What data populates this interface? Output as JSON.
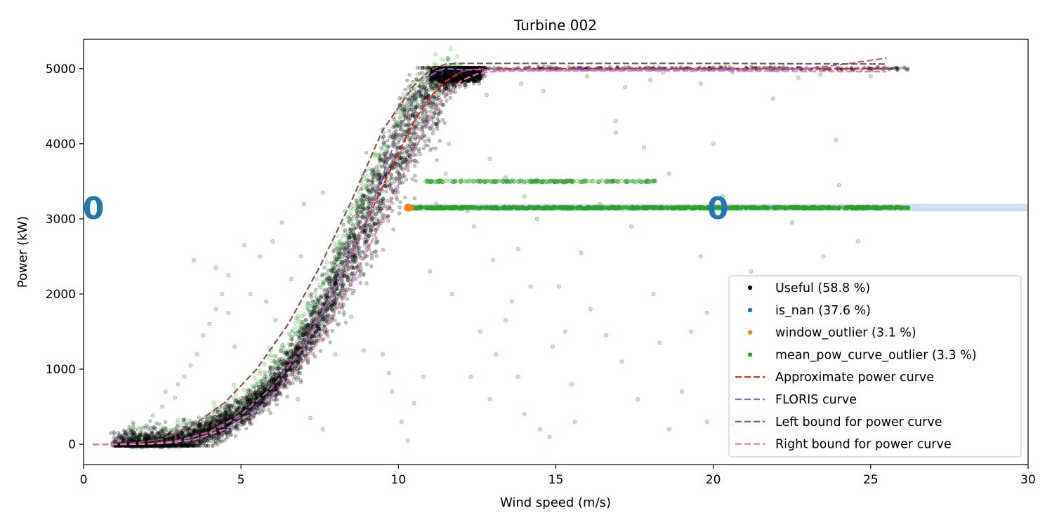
{
  "chart_data": {
    "type": "scatter",
    "title": "Turbine 002",
    "xlabel": "Wind speed (m/s)",
    "ylabel": "Power (kW)",
    "xlim": [
      0,
      30
    ],
    "ylim": [
      -270,
      5390
    ],
    "x_ticks": [
      0,
      5,
      10,
      15,
      20,
      25,
      30
    ],
    "y_ticks": [
      0,
      1000,
      2000,
      3000,
      4000,
      5000
    ],
    "grid": false,
    "legend_position": "lower-right",
    "colors": {
      "useful": "#000000",
      "is_nan": "#1f77b4",
      "window_outlier": "#ff7f0e",
      "mean_pow_curve_outlier": "#2ca02c",
      "approx_curve": "#d62728",
      "floris_curve": "#9467bd",
      "left_bound": "#8c564b",
      "right_bound": "#e377c2"
    },
    "legend": [
      {
        "label": "Useful (58.8 %)",
        "kind": "marker",
        "color": "#000000"
      },
      {
        "label": "is_nan (37.6 %)",
        "kind": "marker",
        "color": "#1f77b4"
      },
      {
        "label": "window_outlier (3.1 %)",
        "kind": "marker",
        "color": "#ff7f0e"
      },
      {
        "label": "mean_pow_curve_outlier (3.3 %)",
        "kind": "marker",
        "color": "#2ca02c"
      },
      {
        "label": "Approximate power curve",
        "kind": "dash",
        "color": "#d62728"
      },
      {
        "label": "FLORIS curve",
        "kind": "dash",
        "color": "#9467bd"
      },
      {
        "label": "Left bound for power curve",
        "kind": "dash",
        "color": "#8c564b"
      },
      {
        "label": "Right bound for power curve",
        "kind": "dash",
        "color": "#e377c2"
      }
    ],
    "annotations": [
      {
        "text": "0",
        "x": 0,
        "y": 3150,
        "color": "#1f77b4"
      },
      {
        "text": "0",
        "x": 20.1,
        "y": 3150,
        "color": "#1f77b4"
      }
    ],
    "band": {
      "y_range": [
        3100,
        3200
      ],
      "x_range": [
        10.4,
        30
      ],
      "color": "#1f77b4"
    },
    "series": [
      {
        "name": "Approximate power curve",
        "style": "dashed",
        "color": "#d62728",
        "x": [
          0.3,
          1,
          2,
          3,
          4,
          5,
          6,
          7,
          8,
          9,
          10,
          10.5,
          11,
          11.5,
          12,
          12.5,
          13,
          15,
          20,
          25.5
        ],
        "y": [
          0,
          0,
          5,
          50,
          170,
          400,
          760,
          1320,
          2080,
          2980,
          3880,
          4300,
          4620,
          4830,
          4960,
          5000,
          5000,
          5000,
          5000,
          5000
        ]
      },
      {
        "name": "FLORIS curve",
        "style": "dashed",
        "color": "#9467bd",
        "x": [
          0.3,
          1,
          2,
          3,
          4,
          5,
          6,
          7,
          8,
          9,
          10,
          10.5,
          11,
          11.3,
          11.5,
          12,
          15,
          20,
          23,
          24,
          25.5
        ],
        "y": [
          0,
          0,
          5,
          45,
          160,
          390,
          760,
          1300,
          2080,
          3000,
          4150,
          4600,
          4900,
          4980,
          5000,
          4985,
          4985,
          4990,
          5000,
          5050,
          5140
        ]
      },
      {
        "name": "Left bound for power curve",
        "style": "dashed",
        "color": "#8c564b",
        "x": [
          0.3,
          1,
          1.5,
          2.5,
          3.5,
          4.5,
          5.5,
          6.5,
          7.5,
          8.5,
          9.5,
          10,
          10.5,
          11,
          11.5,
          12,
          15,
          20,
          25.5
        ],
        "y": [
          0,
          0,
          10,
          70,
          260,
          560,
          1000,
          1600,
          2360,
          3230,
          4180,
          4480,
          4780,
          4980,
          5060,
          5070,
          5070,
          5070,
          5060
        ]
      },
      {
        "name": "Right bound for power curve",
        "style": "dashed",
        "color": "#e377c2",
        "x": [
          0.3,
          1.5,
          2.5,
          3.5,
          4.5,
          5.5,
          6.5,
          7.5,
          8.5,
          9.5,
          10.5,
          11,
          11.5,
          12,
          12.5,
          13,
          13.5,
          15,
          20,
          25.5
        ],
        "y": [
          0,
          0,
          10,
          60,
          200,
          450,
          850,
          1400,
          2140,
          3000,
          3900,
          4330,
          4650,
          4840,
          4930,
          4960,
          4970,
          4970,
          4970,
          4960
        ]
      }
    ],
    "scatter": {
      "useful_band": {
        "name": "Useful (58.8 %)",
        "color": "#000000",
        "x": [
          1,
          2,
          3,
          4,
          5,
          6,
          7,
          8,
          9,
          10,
          10.5,
          11,
          11.5,
          12,
          12.5,
          13,
          15,
          20,
          25,
          26.2
        ],
        "y_center": [
          0,
          5,
          50,
          170,
          400,
          760,
          1320,
          2080,
          2980,
          3880,
          4300,
          4620,
          4830,
          4960,
          5000,
          5000,
          5000,
          5000,
          5000,
          5000
        ],
        "x_spread": 0.45
      },
      "outlier_lines": [
        {
          "name": "mean_pow_curve_outlier (3.3 %)",
          "x_range": [
            10.3,
            26.2
          ],
          "y": 3150,
          "color": "#2ca02c"
        },
        {
          "name": "mean_pow_curve_outlier (3.3 %)",
          "x_range": [
            10.8,
            18.2
          ],
          "y": 3500,
          "color": "#2ca02c"
        }
      ],
      "window_outlier_point": {
        "name": "window_outlier (3.1 %)",
        "x": 10.3,
        "y": 3150,
        "color": "#ff7f0e"
      },
      "scattered_outliers": {
        "name": "mean_pow_curve_outlier (3.3 %)",
        "color": "#2ca02c",
        "points": [
          [
            1.8,
            120
          ],
          [
            2.0,
            250
          ],
          [
            2.2,
            380
          ],
          [
            2.5,
            500
          ],
          [
            2.6,
            700
          ],
          [
            2.9,
            620
          ],
          [
            3.0,
            800
          ],
          [
            3.2,
            900
          ],
          [
            3.4,
            1050
          ],
          [
            3.6,
            1200
          ],
          [
            3.8,
            1450
          ],
          [
            4.0,
            1600
          ],
          [
            4.2,
            1800
          ],
          [
            4.4,
            2000
          ],
          [
            4.6,
            1750
          ],
          [
            4.8,
            1300
          ],
          [
            3.5,
            2450
          ],
          [
            4.2,
            2350
          ],
          [
            4.6,
            2250
          ],
          [
            5.1,
            2650
          ],
          [
            5.6,
            2500
          ],
          [
            6.0,
            2700
          ],
          [
            6.3,
            2950
          ],
          [
            7.0,
            3200
          ],
          [
            7.6,
            3350
          ],
          [
            8.3,
            3100
          ],
          [
            8.8,
            3500
          ],
          [
            5.3,
            2000
          ],
          [
            5.8,
            1900
          ],
          [
            6.1,
            1650
          ],
          [
            6.6,
            2200
          ],
          [
            6.9,
            2500
          ],
          [
            7.3,
            1900
          ],
          [
            7.9,
            2300
          ],
          [
            8.1,
            1600
          ],
          [
            6.2,
            950
          ],
          [
            6.8,
            600
          ],
          [
            7.2,
            350
          ],
          [
            7.6,
            200
          ],
          [
            8.0,
            1200
          ],
          [
            8.5,
            1700
          ],
          [
            8.9,
            1250
          ],
          [
            9.3,
            2700
          ],
          [
            9.5,
            1200
          ],
          [
            9.7,
            950
          ],
          [
            9.8,
            700
          ],
          [
            10.1,
            300
          ],
          [
            10.3,
            50
          ],
          [
            10.5,
            550
          ],
          [
            10.8,
            900
          ],
          [
            11.0,
            2300
          ],
          [
            11.2,
            3200
          ],
          [
            11.5,
            3600
          ],
          [
            11.6,
            4000
          ],
          [
            12.2,
            3100
          ],
          [
            12.4,
            2900
          ],
          [
            12.9,
            3800
          ],
          [
            13.0,
            2450
          ],
          [
            13.4,
            3550
          ],
          [
            13.6,
            1900
          ],
          [
            13.8,
            2600
          ],
          [
            14.0,
            3300
          ],
          [
            14.2,
            2100
          ],
          [
            14.4,
            3000
          ],
          [
            12.6,
            1500
          ],
          [
            12.9,
            600
          ],
          [
            13.1,
            1200
          ],
          [
            13.4,
            1650
          ],
          [
            13.8,
            900
          ],
          [
            14.0,
            400
          ],
          [
            14.5,
            200
          ],
          [
            14.9,
            1300
          ],
          [
            15.1,
            2100
          ],
          [
            15.3,
            1500
          ],
          [
            15.5,
            800
          ],
          [
            15.8,
            2550
          ],
          [
            16.1,
            1800
          ],
          [
            16.4,
            3200
          ],
          [
            16.6,
            1450
          ],
          [
            16.9,
            4150
          ],
          [
            17.1,
            1100
          ],
          [
            17.4,
            2900
          ],
          [
            17.6,
            600
          ],
          [
            17.8,
            3950
          ],
          [
            18.1,
            2000
          ],
          [
            18.3,
            1350
          ],
          [
            18.6,
            3600
          ],
          [
            19.0,
            700
          ],
          [
            19.3,
            1500
          ],
          [
            19.6,
            2500
          ],
          [
            20.0,
            4000
          ],
          [
            20.3,
            3300
          ],
          [
            20.6,
            250
          ],
          [
            20.9,
            1500
          ],
          [
            21.2,
            2300
          ],
          [
            21.6,
            600
          ],
          [
            22.0,
            900
          ],
          [
            22.5,
            2950
          ],
          [
            23.0,
            1200
          ],
          [
            23.5,
            2500
          ],
          [
            24.0,
            3450
          ],
          [
            24.6,
            2700
          ],
          [
            25.0,
            4900
          ],
          [
            21.9,
            4600
          ],
          [
            16.0,
            4900
          ],
          [
            17.2,
            4750
          ],
          [
            18.4,
            4950
          ],
          [
            19.6,
            4800
          ],
          [
            22.7,
            4880
          ],
          [
            14.6,
            4700
          ],
          [
            13.9,
            4800
          ],
          [
            12.8,
            4650
          ],
          [
            18.6,
            200
          ],
          [
            19.8,
            300
          ],
          [
            20.7,
            150
          ],
          [
            21.4,
            500
          ],
          [
            14.8,
            100
          ],
          [
            15.6,
            300
          ],
          [
            12.3,
            900
          ],
          [
            11.7,
            2000
          ],
          [
            16.9,
            4300
          ],
          [
            18.0,
            4850
          ],
          [
            20.6,
            4950
          ],
          [
            23.4,
            4920
          ],
          [
            19.8,
            1750
          ],
          [
            22.7,
            200
          ],
          [
            23.9,
            4050
          ],
          [
            24.7,
            1500
          ]
        ]
      }
    }
  }
}
